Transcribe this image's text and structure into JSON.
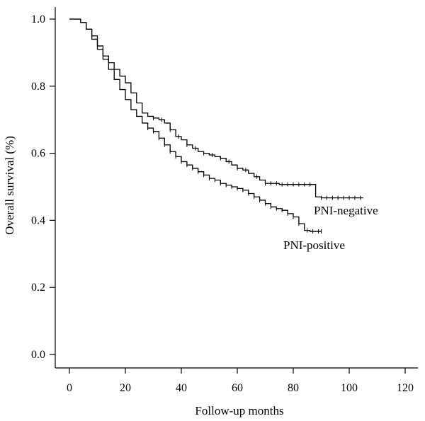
{
  "chart_data": {
    "type": "line",
    "xlabel": "Follow-up months",
    "ylabel": "Overall survival (%)",
    "xlim": [
      0,
      120
    ],
    "ylim": [
      0,
      1.0
    ],
    "x_ticks": [
      "0",
      "20",
      "40",
      "60",
      "80",
      "100",
      "120"
    ],
    "y_ticks": [
      "0.0",
      "0.2",
      "0.4",
      "0.6",
      "0.8",
      "1.0"
    ],
    "grid": false,
    "legend": "none",
    "series": [
      {
        "name": "PNI-negative",
        "x": [
          0,
          3,
          4,
          6,
          8,
          10,
          12,
          14,
          16,
          18,
          20,
          22,
          24,
          26,
          28,
          30,
          32,
          34,
          36,
          38,
          40,
          42,
          44,
          46,
          48,
          50,
          52,
          54,
          56,
          58,
          60,
          62,
          64,
          66,
          68,
          70,
          75,
          80,
          85,
          87,
          88,
          90,
          95,
          100,
          105
        ],
        "y": [
          1.0,
          1.0,
          0.99,
          0.97,
          0.95,
          0.92,
          0.89,
          0.87,
          0.85,
          0.83,
          0.81,
          0.78,
          0.75,
          0.72,
          0.71,
          0.705,
          0.7,
          0.69,
          0.67,
          0.65,
          0.64,
          0.625,
          0.615,
          0.605,
          0.6,
          0.595,
          0.59,
          0.585,
          0.575,
          0.565,
          0.555,
          0.55,
          0.54,
          0.53,
          0.52,
          0.51,
          0.507,
          0.507,
          0.507,
          0.507,
          0.47,
          0.467,
          0.467,
          0.467,
          0.467
        ],
        "censor_x": [
          30,
          33,
          36,
          39,
          42,
          45,
          48,
          51,
          54,
          57,
          60,
          63,
          67,
          70,
          72,
          74,
          76,
          78,
          80,
          82,
          84,
          86,
          90,
          92,
          94,
          96,
          98,
          100,
          102,
          104
        ]
      },
      {
        "name": "PNI-positive",
        "x": [
          0,
          3,
          4,
          6,
          8,
          10,
          12,
          14,
          16,
          18,
          20,
          22,
          24,
          26,
          28,
          30,
          32,
          34,
          36,
          38,
          40,
          42,
          44,
          46,
          48,
          50,
          52,
          54,
          56,
          58,
          60,
          62,
          64,
          66,
          68,
          70,
          72,
          74,
          76,
          78,
          80,
          82,
          84,
          86,
          88,
          90
        ],
        "y": [
          1.0,
          1.0,
          0.99,
          0.97,
          0.94,
          0.91,
          0.88,
          0.85,
          0.82,
          0.79,
          0.76,
          0.73,
          0.71,
          0.69,
          0.675,
          0.665,
          0.645,
          0.625,
          0.605,
          0.59,
          0.575,
          0.565,
          0.555,
          0.545,
          0.535,
          0.525,
          0.52,
          0.51,
          0.505,
          0.5,
          0.495,
          0.49,
          0.48,
          0.47,
          0.46,
          0.45,
          0.44,
          0.435,
          0.43,
          0.42,
          0.41,
          0.39,
          0.37,
          0.367,
          0.367,
          0.367
        ],
        "censor_x": [
          28,
          30,
          32,
          34,
          36,
          38,
          40,
          42,
          44,
          46,
          48,
          50,
          52,
          54,
          56,
          58,
          60,
          62,
          64,
          66,
          68,
          70,
          72,
          74,
          76,
          78,
          80,
          82,
          85,
          87,
          89,
          90
        ]
      }
    ]
  }
}
